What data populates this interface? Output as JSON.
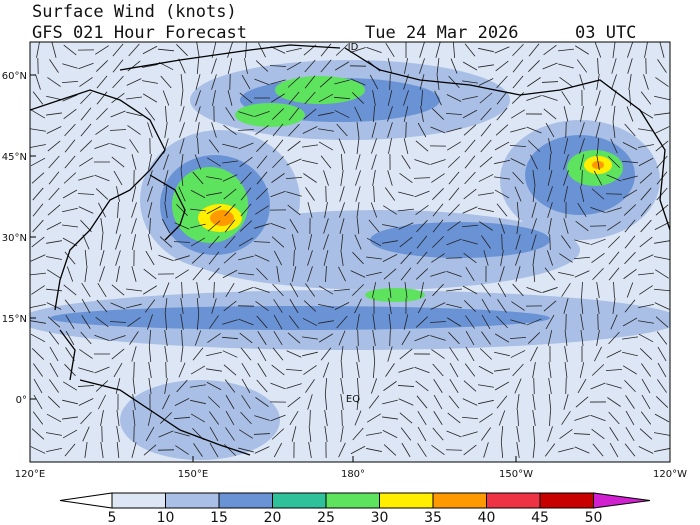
{
  "header": {
    "title": "Surface Wind (knots)",
    "subtitle": "GFS 021 Hour Forecast",
    "date": "Tue 24 Mar 2026",
    "time": "03 UTC"
  },
  "map": {
    "lat_labels": [
      "60°N",
      "45°N",
      "30°N",
      "15°N",
      "0°"
    ],
    "lon_labels": [
      "120°E",
      "150°E",
      "180°",
      "150°W",
      "120°W"
    ],
    "equator_label": "EQ",
    "dateline_label": "ID"
  },
  "colorbar": {
    "ticks": [
      5,
      10,
      15,
      20,
      25,
      30,
      35,
      40,
      45,
      50
    ],
    "colors": [
      "#ffffff",
      "#dde6f5",
      "#a9bfe6",
      "#6a93d6",
      "#2fc19a",
      "#5ee35e",
      "#ffee00",
      "#ff9900",
      "#ee3344",
      "#c80000",
      "#d020d0"
    ]
  }
}
